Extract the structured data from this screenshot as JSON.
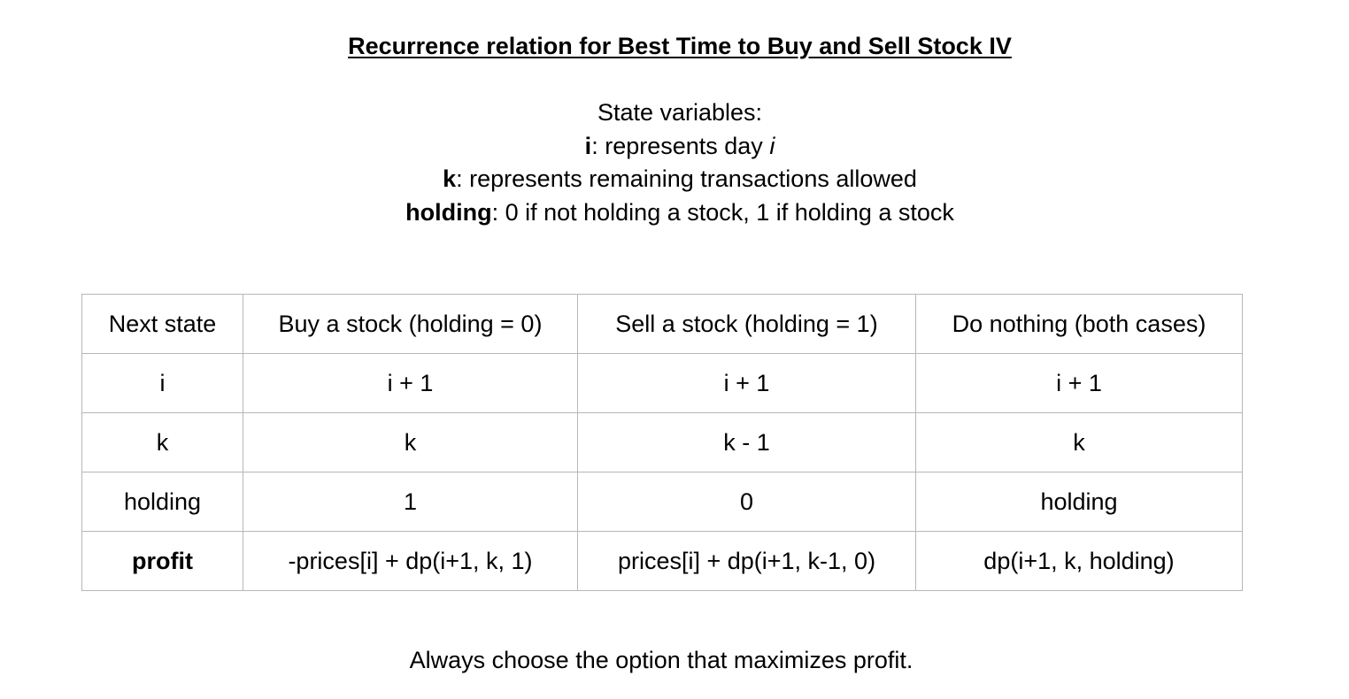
{
  "title": "Recurrence relation for Best Time to Buy and Sell Stock IV",
  "state_variables": {
    "heading": "State variables:",
    "items": [
      {
        "name": "i",
        "separator": ":",
        "description_prefix": " represents day ",
        "description_italic": "i"
      },
      {
        "name": "k",
        "separator": ":",
        "description": " represents remaining transactions allowed"
      },
      {
        "name": "holding",
        "separator": ":",
        "description": " 0 if not holding a stock, 1 if holding a stock"
      }
    ]
  },
  "table": {
    "header": [
      "Next state",
      "Buy a stock (holding = 0)",
      "Sell a stock (holding = 1)",
      "Do nothing (both cases)"
    ],
    "rows": [
      {
        "label": "i",
        "label_bold": false,
        "cells": [
          "i + 1",
          "i + 1",
          "i + 1"
        ]
      },
      {
        "label": "k",
        "label_bold": false,
        "cells": [
          "k",
          "k - 1",
          "k"
        ]
      },
      {
        "label": "holding",
        "label_bold": false,
        "cells": [
          "1",
          "0",
          "holding"
        ]
      },
      {
        "label": "profit",
        "label_bold": true,
        "cells": [
          "-prices[i] + dp(i+1, k, 1)",
          "prices[i] + dp(i+1, k-1, 0)",
          "dp(i+1, k, holding)"
        ]
      }
    ]
  },
  "footer": "Always choose the option that maximizes profit."
}
